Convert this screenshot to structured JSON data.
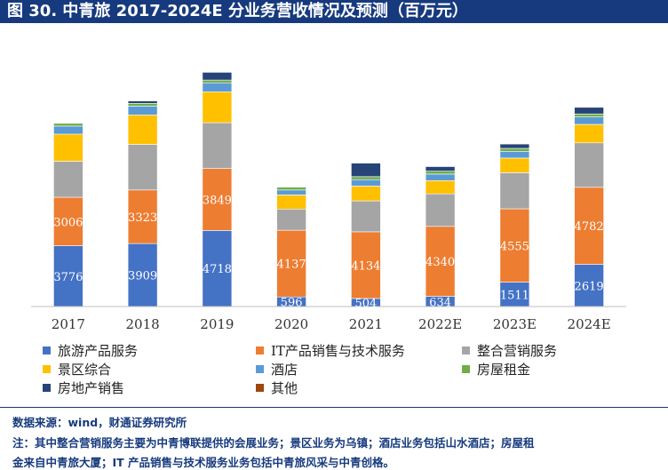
{
  "title": "图 30. 中青旅 2017-2024E 分业务营收情况及预测（百万元）",
  "colors": {
    "title_bar": "#163a7d",
    "footer_text": "#163a7d"
  },
  "chart_data": {
    "type": "bar",
    "stacked": true,
    "categories": [
      "2017",
      "2018",
      "2019",
      "2020",
      "2021",
      "2022E",
      "2023E",
      "2024E"
    ],
    "ylim": [
      0,
      16000
    ],
    "grid": false,
    "legend_position": "bottom",
    "series": [
      {
        "name": "旅游产品服务",
        "color": "#4472c4",
        "values": [
          3776,
          3909,
          4718,
          596,
          504,
          634,
          1511,
          2619
        ],
        "labels": [
          "3776",
          "3909",
          "4718",
          "596",
          "504",
          "634",
          "1511",
          "2619"
        ]
      },
      {
        "name": "IT产品销售与技术服务",
        "color": "#ed7d31",
        "values": [
          3006,
          3323,
          3849,
          4137,
          4134,
          4340,
          4555,
          4782
        ],
        "labels": [
          "3006",
          "3323",
          "3849",
          "4137",
          "4134",
          "4340",
          "4555",
          "4782"
        ]
      },
      {
        "name": "整合营销服务",
        "color": "#a5a5a5",
        "values": [
          2230,
          2830,
          2840,
          1320,
          1920,
          2020,
          2240,
          2760
        ]
      },
      {
        "name": "景区综合",
        "color": "#ffc000",
        "values": [
          1690,
          1830,
          1920,
          870,
          920,
          820,
          910,
          1140
        ]
      },
      {
        "name": "酒店",
        "color": "#5b9bd5",
        "values": [
          500,
          550,
          560,
          310,
          400,
          410,
          420,
          470
        ]
      },
      {
        "name": "房屋租金",
        "color": "#70ad47",
        "values": [
          170,
          170,
          170,
          170,
          180,
          180,
          180,
          180
        ]
      },
      {
        "name": "房地产销售",
        "color": "#264478",
        "values": [
          0,
          150,
          480,
          0,
          840,
          280,
          270,
          410
        ]
      },
      {
        "name": "其他",
        "color": "#9e480e",
        "values": [
          0,
          0,
          0,
          0,
          0,
          0,
          0,
          0
        ]
      }
    ]
  },
  "footer": {
    "source": "数据来源：wind，财通证券研究所",
    "note_line1": "注：其中整合营销服务主要为中青博联提供的会展业务；景区业务为乌镇；酒店业务包括山水酒店；房屋租",
    "note_line2": "金来自中青旅大厦；IT 产品销售与技术服务业务包括中青旅风采与中青创格。"
  }
}
